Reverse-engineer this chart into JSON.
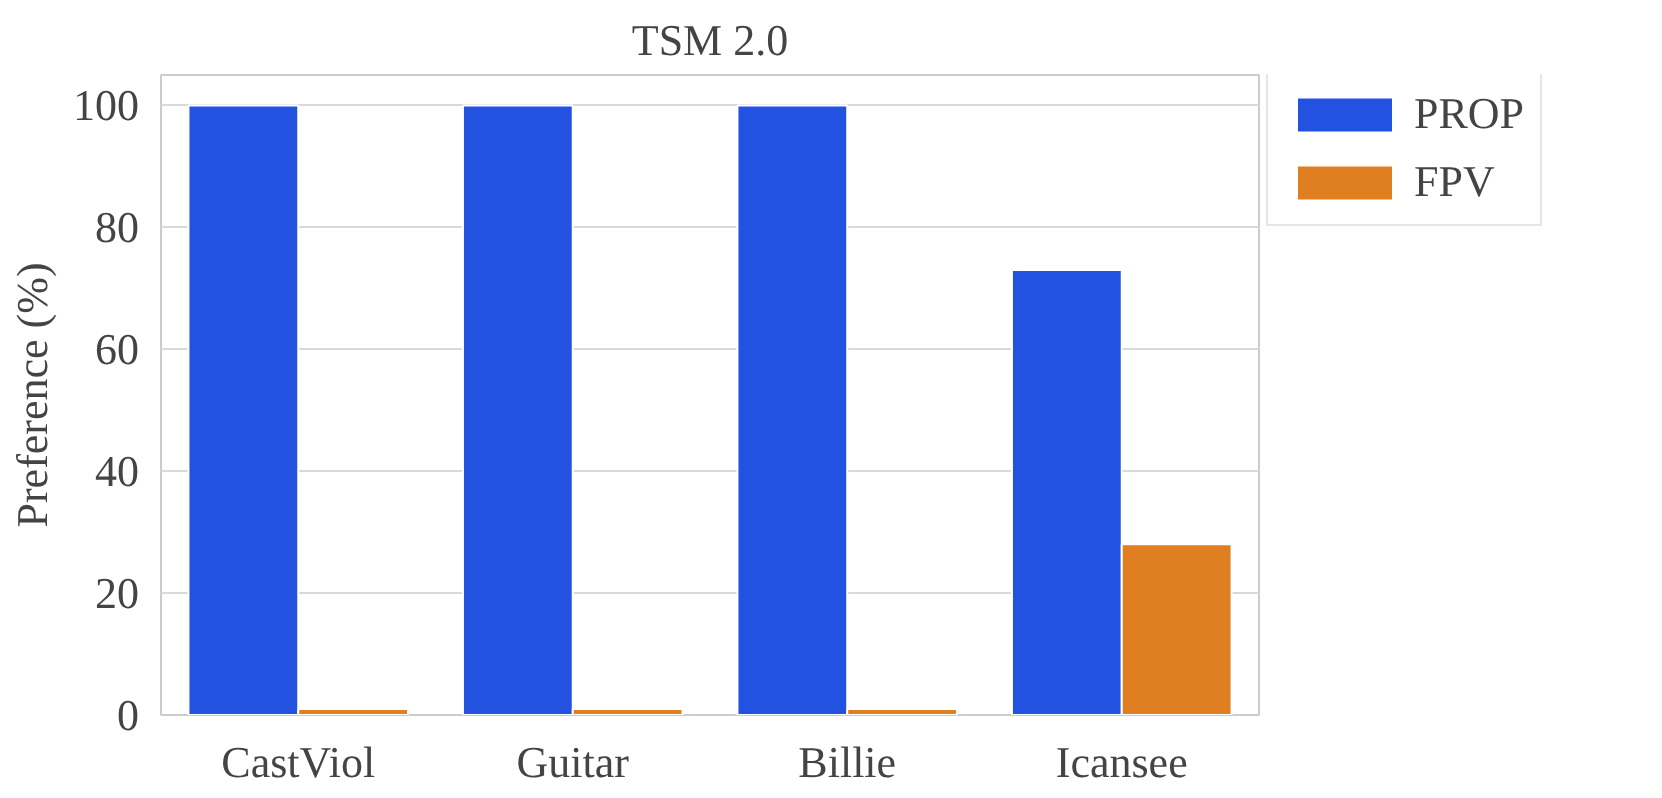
{
  "chart_data": {
    "type": "bar",
    "title": "TSM 2.0",
    "ylabel": "Preference (%)",
    "categories": [
      "CastViol",
      "Guitar",
      "Billie",
      "Icansee"
    ],
    "series": [
      {
        "name": "PROP",
        "color": "#2351e0",
        "values": [
          100,
          100,
          100,
          73
        ]
      },
      {
        "name": "FPV",
        "color": "#e07e22",
        "values": [
          1,
          1,
          1,
          28
        ]
      }
    ],
    "ylim": [
      0,
      105
    ],
    "yticks": [
      0,
      20,
      40,
      60,
      80,
      100
    ],
    "grid": "y",
    "legend": "top right"
  }
}
